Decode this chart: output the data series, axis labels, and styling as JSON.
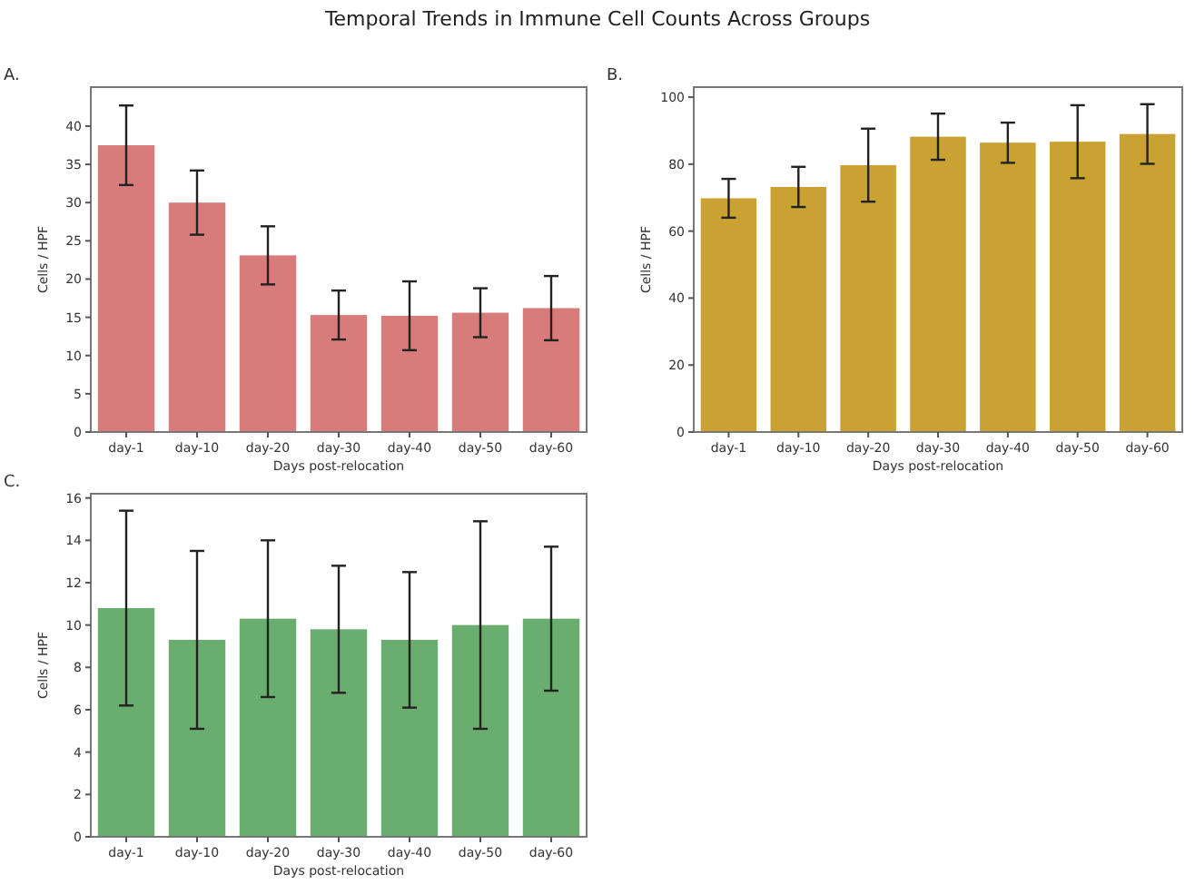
{
  "chart_data": [
    {
      "type": "other",
      "title": "Temporal Trends in Immune Cell Counts Across Groups"
    },
    {
      "type": "bar",
      "title": "A.",
      "xlabel": "Days post-relocation",
      "ylabel": "Cells / HPF",
      "categories": [
        "day-1",
        "day-10",
        "day-20",
        "day-30",
        "day-40",
        "day-50",
        "day-60"
      ],
      "values": [
        37.5,
        30.0,
        23.1,
        15.3,
        15.2,
        15.6,
        16.2
      ],
      "errors": [
        5.2,
        4.2,
        3.8,
        3.2,
        4.5,
        3.2,
        4.2
      ],
      "color": "#d77b7b",
      "ylim": [
        0,
        45.1
      ],
      "yticks": [
        0,
        5,
        10,
        15,
        20,
        25,
        30,
        35,
        40
      ],
      "grid": false
    },
    {
      "type": "bar",
      "title": "B.",
      "xlabel": "Days post-relocation",
      "ylabel": "Cells / HPF",
      "categories": [
        "day-1",
        "day-10",
        "day-20",
        "day-30",
        "day-40",
        "day-50",
        "day-60"
      ],
      "values": [
        69.8,
        73.2,
        79.7,
        88.2,
        86.4,
        86.7,
        89.0
      ],
      "errors": [
        5.8,
        6.0,
        10.9,
        6.9,
        6.0,
        10.9,
        8.9
      ],
      "color": "#c9a232",
      "ylim": [
        0,
        103
      ],
      "yticks": [
        0,
        20,
        40,
        60,
        80,
        100
      ],
      "grid": false
    },
    {
      "type": "bar",
      "title": "C.",
      "xlabel": "Days post-relocation",
      "ylabel": "Cells / HPF",
      "categories": [
        "day-1",
        "day-10",
        "day-20",
        "day-30",
        "day-40",
        "day-50",
        "day-60"
      ],
      "values": [
        10.8,
        9.3,
        10.3,
        9.8,
        9.3,
        10.0,
        10.3
      ],
      "errors": [
        4.6,
        4.2,
        3.7,
        3.0,
        3.2,
        4.9,
        3.4
      ],
      "color": "#6aae6f",
      "ylim": [
        0,
        16.2
      ],
      "yticks": [
        0,
        2,
        4,
        6,
        8,
        10,
        12,
        14,
        16
      ],
      "grid": false
    }
  ]
}
